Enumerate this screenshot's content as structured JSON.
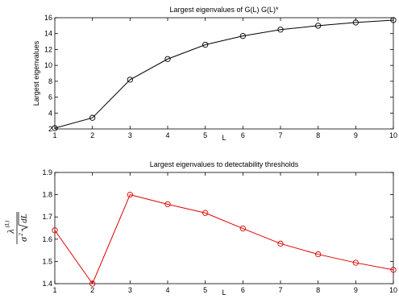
{
  "chart_data": [
    {
      "type": "line",
      "title": "Largest eigenvalues of G(L) G(L)*",
      "xlabel": "L",
      "ylabel": "Largest eigenvalues",
      "x": [
        1,
        2,
        3,
        4,
        5,
        6,
        7,
        8,
        9,
        10
      ],
      "xlim": [
        1,
        10
      ],
      "ylim": [
        2,
        16
      ],
      "xticks": [
        "1",
        "2",
        "3",
        "4",
        "5",
        "6",
        "7",
        "8",
        "9",
        "10"
      ],
      "yticks": [
        "2",
        "4",
        "6",
        "8",
        "10",
        "12",
        "14",
        "16"
      ],
      "grid": false,
      "series": [
        {
          "values": [
            2.1,
            3.4,
            8.2,
            10.8,
            12.6,
            13.7,
            14.5,
            15.0,
            15.4,
            15.7
          ],
          "color": "#000000",
          "marker": "circle"
        }
      ]
    },
    {
      "type": "line",
      "title": "Largest eigenvalues to detectability thresholds",
      "xlabel": "L",
      "ylabel": "λ^(L) / (σ² √dL)",
      "ylabel_parts": {
        "numerator": "λ",
        "superscript": "(L)",
        "sigma": "σ",
        "square": "2",
        "root_content": "dL"
      },
      "x": [
        1,
        2,
        3,
        4,
        5,
        6,
        7,
        8,
        9,
        10
      ],
      "xlim": [
        1,
        10
      ],
      "ylim": [
        1.4,
        1.9
      ],
      "xticks": [
        "1",
        "2",
        "3",
        "4",
        "5",
        "6",
        "7",
        "8",
        "9",
        "10"
      ],
      "yticks": [
        "1.4",
        "1.5",
        "1.6",
        "1.7",
        "1.8",
        "1.9"
      ],
      "grid": false,
      "series": [
        {
          "values": [
            1.64,
            1.4,
            1.8,
            1.757,
            1.718,
            1.648,
            1.58,
            1.532,
            1.494,
            1.462
          ],
          "color": "#e00000",
          "marker": "circle"
        }
      ]
    }
  ]
}
